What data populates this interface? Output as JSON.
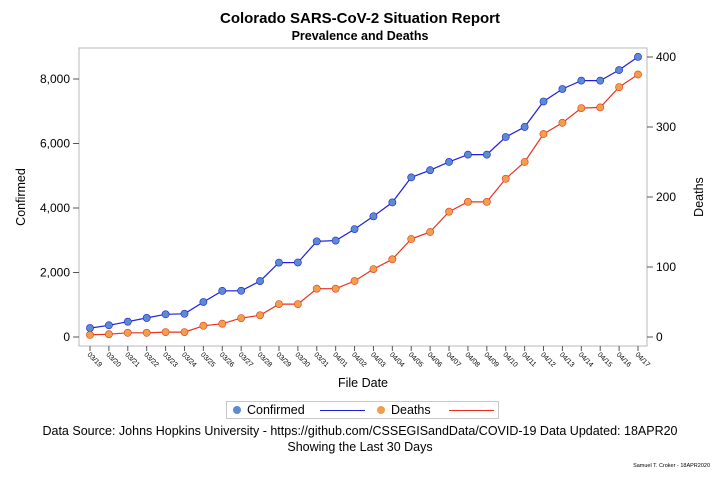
{
  "chart_data": {
    "type": "line",
    "title": "Colorado SARS-CoV-2 Situation Report",
    "subtitle": "Prevalence and Deaths",
    "xlabel": "File Date",
    "ylabel_left": "Confirmed",
    "ylabel_right": "Deaths",
    "x": [
      "03/19",
      "03/20",
      "03/21",
      "03/22",
      "03/23",
      "03/24",
      "03/25",
      "03/26",
      "03/27",
      "03/28",
      "03/29",
      "03/30",
      "03/31",
      "04/01",
      "04/02",
      "04/03",
      "04/04",
      "04/05",
      "04/06",
      "04/07",
      "04/08",
      "04/09",
      "04/10",
      "04/11",
      "04/12",
      "04/13",
      "04/14",
      "04/15",
      "04/16",
      "04/17"
    ],
    "left_axis": {
      "ylim": [
        0,
        8700
      ],
      "ticks": [
        0,
        2000,
        4000,
        6000,
        8000
      ],
      "tick_labels": [
        "0",
        "2,000",
        "4,000",
        "6,000",
        "8,000"
      ]
    },
    "right_axis": {
      "ylim": [
        0,
        400
      ],
      "ticks": [
        0,
        100,
        200,
        300,
        400
      ],
      "tick_labels": [
        "0",
        "100",
        "200",
        "300",
        "400"
      ]
    },
    "series": [
      {
        "name": "Confirmed",
        "axis": "left",
        "line_color": "#1f1fd9",
        "marker_color": "#5b8bd0",
        "values": [
          277,
          364,
          475,
          591,
          704,
          720,
          1086,
          1430,
          1433,
          1734,
          2307,
          2311,
          2966,
          2990,
          3346,
          3742,
          4173,
          4950,
          5172,
          5429,
          5655,
          5655,
          6202,
          6513,
          7303,
          7691,
          7950,
          7950,
          8280,
          8686
        ]
      },
      {
        "name": "Deaths",
        "axis": "right",
        "line_color": "#e8321e",
        "marker_color": "#f0a04b",
        "values": [
          3,
          4,
          6,
          6,
          7,
          7,
          16,
          19,
          27,
          31,
          47,
          47,
          69,
          69,
          80,
          97,
          111,
          140,
          150,
          179,
          193,
          193,
          226,
          250,
          290,
          306,
          327,
          328,
          357,
          375
        ]
      }
    ],
    "legend": {
      "position": "bottom",
      "entries": [
        "Confirmed",
        "Deaths"
      ]
    },
    "grid": false
  },
  "footnote": {
    "line1": "Data Source: Johns Hopkins University - https://github.com/CSSEGISandData/COVID-19 Data Updated: 18APR20",
    "line2": "Showing the Last 30 Days"
  },
  "credit": "Samuel T. Croker - 18APR2020"
}
